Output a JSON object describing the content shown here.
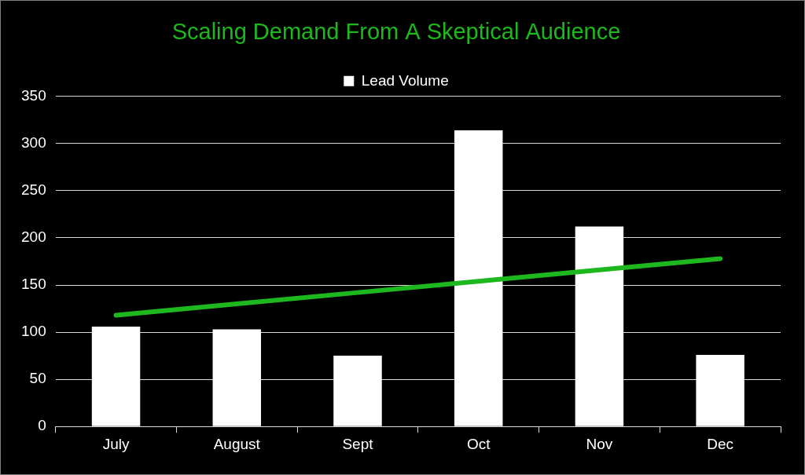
{
  "chart_data": {
    "type": "bar",
    "title": "Scaling Demand From A Skeptical Audience",
    "categories": [
      "July",
      "August",
      "Sept",
      "Oct",
      "Nov",
      "Dec"
    ],
    "series": [
      {
        "name": "Lead Volume",
        "color": "#ffffff",
        "values": [
          106,
          103,
          75,
          314,
          212,
          76
        ]
      },
      {
        "type": "line",
        "color": "#1db81d",
        "values": [
          118,
          130,
          142,
          154,
          166,
          178
        ]
      }
    ],
    "ylim": [
      0,
      350
    ],
    "yticks": [
      0,
      50,
      100,
      150,
      200,
      250,
      300,
      350
    ],
    "grid": true,
    "legend": "top"
  }
}
